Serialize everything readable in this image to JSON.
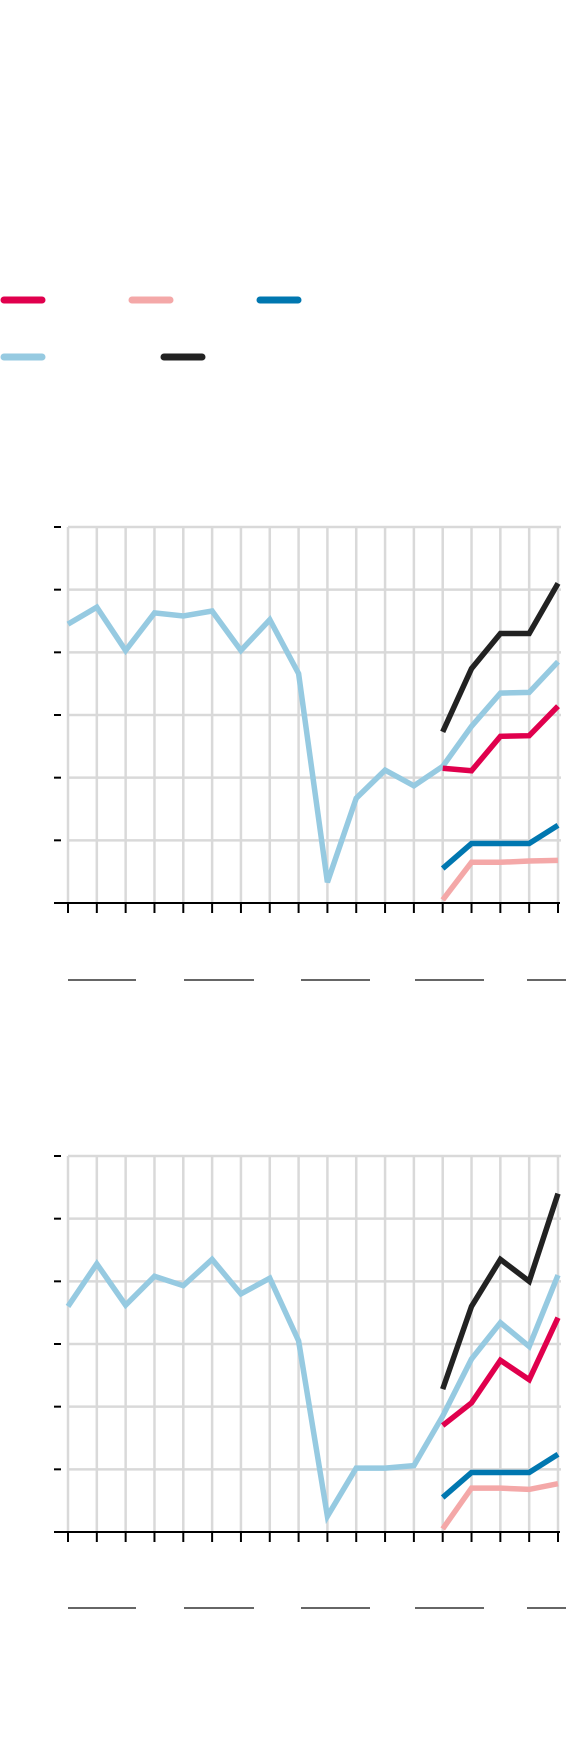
{
  "colors": {
    "background": "#ffffff",
    "grid": "#d9d9d9",
    "axis": "#000000",
    "series_red": "#e0004d",
    "series_pink": "#f4a8a8",
    "series_blue": "#0077b0",
    "series_lightblue": "#96cae1",
    "series_black": "#222222"
  },
  "legend": {
    "placement": "top-left",
    "items": [
      {
        "color_key": "series_red",
        "label": ""
      },
      {
        "color_key": "series_pink",
        "label": ""
      },
      {
        "color_key": "series_blue",
        "label": ""
      },
      {
        "color_key": "series_lightblue",
        "label": ""
      },
      {
        "color_key": "series_black",
        "label": ""
      }
    ]
  },
  "chart_data": [
    {
      "type": "line",
      "title": "",
      "xlabel": "",
      "ylabel": "",
      "grid": true,
      "x": [
        0,
        1,
        2,
        3,
        4,
        5,
        6,
        7,
        8,
        9,
        10,
        11,
        12,
        13,
        14,
        15,
        16,
        17
      ],
      "xlim": [
        0,
        17
      ],
      "ylim": [
        0,
        6
      ],
      "y_ticks": [
        0,
        1,
        2,
        3,
        4,
        5,
        6
      ],
      "x_group_labels": [
        "",
        "",
        "",
        "",
        ""
      ],
      "series": [
        {
          "color_key": "series_lightblue",
          "x": [
            0,
            1,
            2,
            3,
            4,
            5,
            6,
            7,
            8,
            9,
            10,
            11,
            12,
            13,
            14,
            15,
            16,
            17
          ],
          "y": [
            4.45,
            4.72,
            4.03,
            4.63,
            4.58,
            4.66,
            4.03,
            4.52,
            3.66,
            0.33,
            1.67,
            2.12,
            1.87,
            2.18,
            2.82,
            3.35,
            3.36,
            3.85
          ]
        },
        {
          "color_key": "series_black",
          "x": [
            13,
            14,
            15,
            16,
            17
          ],
          "y": [
            2.73,
            3.74,
            4.3,
            4.3,
            5.1
          ]
        },
        {
          "color_key": "series_red",
          "x": [
            13,
            14,
            15,
            16,
            17
          ],
          "y": [
            2.15,
            2.11,
            2.66,
            2.67,
            3.14
          ]
        },
        {
          "color_key": "series_blue",
          "x": [
            13,
            14,
            15,
            16,
            17
          ],
          "y": [
            0.55,
            0.95,
            0.95,
            0.95,
            1.24
          ]
        },
        {
          "color_key": "series_pink",
          "x": [
            13,
            14,
            15,
            16,
            17
          ],
          "y": [
            0.05,
            0.65,
            0.65,
            0.67,
            0.68
          ]
        }
      ]
    },
    {
      "type": "line",
      "title": "",
      "xlabel": "",
      "ylabel": "",
      "grid": true,
      "x": [
        0,
        1,
        2,
        3,
        4,
        5,
        6,
        7,
        8,
        9,
        10,
        11,
        12,
        13,
        14,
        15,
        16,
        17
      ],
      "xlim": [
        0,
        17
      ],
      "ylim": [
        0,
        6
      ],
      "y_ticks": [
        0,
        1,
        2,
        3,
        4,
        5,
        6
      ],
      "x_group_labels": [
        "",
        "",
        "",
        "",
        ""
      ],
      "series": [
        {
          "color_key": "series_lightblue",
          "x": [
            0,
            1,
            2,
            3,
            4,
            5,
            6,
            7,
            8,
            9,
            10,
            11,
            12,
            13,
            14,
            15,
            16,
            17
          ],
          "y": [
            3.6,
            4.28,
            3.62,
            4.08,
            3.93,
            4.35,
            3.8,
            4.05,
            3.05,
            0.25,
            1.02,
            1.02,
            1.06,
            1.85,
            2.76,
            3.34,
            2.96,
            4.1
          ]
        },
        {
          "color_key": "series_black",
          "x": [
            13,
            14,
            15,
            16,
            17
          ],
          "y": [
            2.28,
            3.6,
            4.35,
            4.0,
            5.4
          ]
        },
        {
          "color_key": "series_red",
          "x": [
            13,
            14,
            15,
            16,
            17
          ],
          "y": [
            1.7,
            2.06,
            2.74,
            2.43,
            3.42
          ]
        },
        {
          "color_key": "series_blue",
          "x": [
            13,
            14,
            15,
            16,
            17
          ],
          "y": [
            0.55,
            0.95,
            0.95,
            0.95,
            1.24
          ]
        },
        {
          "color_key": "series_pink",
          "x": [
            13,
            14,
            15,
            16,
            17
          ],
          "y": [
            0.05,
            0.7,
            0.7,
            0.68,
            0.77
          ]
        }
      ]
    }
  ]
}
